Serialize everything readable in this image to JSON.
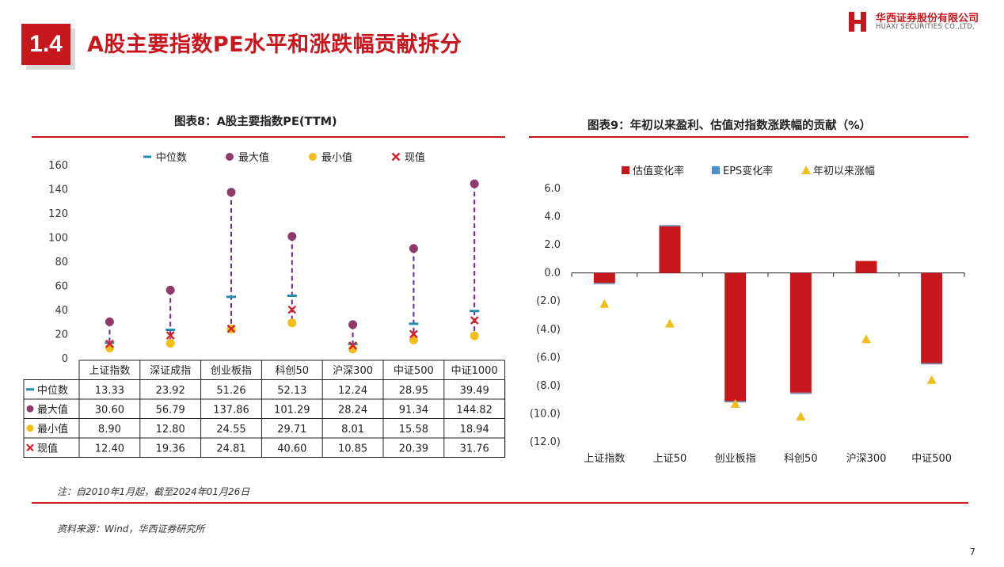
{
  "header": {
    "section_number": "1.4",
    "title": "A股主要指数PE水平和涨跌幅贡献拆分",
    "logo_cn": "华西证券股份有限公司",
    "logo_en": "HUAXI SECURITIES CO.,LTD."
  },
  "figure8": {
    "title": "图表8：A股主要指数PE(TTM)"
  },
  "figure9": {
    "title": "图表9：年初以来盈利、估值对指数涨跌幅的贡献（%）"
  },
  "footer": {
    "note": "注：自2010年1月起，截至2024年01月26日",
    "source": "资料来源：Wind，华西证券研究所",
    "page_number": "7"
  },
  "colors": {
    "brand_red": "#c8161d",
    "median": "#1f8fb0",
    "max": "#8e3a6b",
    "min": "#f2bf1a",
    "current": "#d6202c",
    "dashed": "#6a2b8f",
    "pe_bar": "#c8161d",
    "eps_bar": "#4a90c8",
    "ytd": "#f2bf1a"
  },
  "chart_data": [
    {
      "type": "scatter",
      "title": "图表8：A股主要指数PE(TTM)",
      "categories": [
        "上证指数",
        "深证成指",
        "创业板指",
        "科创50",
        "沪深300",
        "中证500",
        "中证1000"
      ],
      "series": [
        {
          "name": "中位数",
          "values": [
            13.33,
            23.92,
            51.26,
            52.13,
            12.24,
            28.95,
            39.49
          ]
        },
        {
          "name": "最大值",
          "values": [
            30.6,
            56.79,
            137.86,
            101.29,
            28.24,
            91.34,
            144.82
          ]
        },
        {
          "name": "最小值",
          "values": [
            8.9,
            12.8,
            24.55,
            29.71,
            8.01,
            15.58,
            18.94
          ]
        },
        {
          "name": "现值",
          "values": [
            12.4,
            19.36,
            24.81,
            40.6,
            10.85,
            20.39,
            31.76
          ]
        }
      ],
      "table_values": [
        [
          "13.33",
          "23.92",
          "51.26",
          "52.13",
          "12.24",
          "28.95",
          "39.49"
        ],
        [
          "30.60",
          "56.79",
          "137.86",
          "101.29",
          "28.24",
          "91.34",
          "144.82"
        ],
        [
          "8.90",
          "12.80",
          "24.55",
          "29.71",
          "8.01",
          "15.58",
          "18.94"
        ],
        [
          "12.40",
          "19.36",
          "24.81",
          "40.60",
          "10.85",
          "20.39",
          "31.76"
        ]
      ],
      "yticks": [
        "160",
        "140",
        "120",
        "100",
        "80",
        "60",
        "40",
        "20",
        "0"
      ],
      "ylim": [
        0,
        160
      ],
      "legend_position": "top"
    },
    {
      "type": "bar",
      "title": "图表9：年初以来盈利、估值对指数涨跌幅的贡献（%）",
      "categories": [
        "上证指数",
        "上证50",
        "创业板指",
        "科创50",
        "沪深300",
        "中证500"
      ],
      "series": [
        {
          "name": "估值变化率",
          "values": [
            -0.7,
            3.3,
            -9.1,
            -8.5,
            0.85,
            -6.4
          ]
        },
        {
          "name": "EPS变化率",
          "values": [
            -0.1,
            0.1,
            -0.1,
            -0.1,
            0.0,
            -0.1
          ]
        },
        {
          "name": "年初以来涨幅",
          "values": [
            -2.2,
            -3.6,
            -9.3,
            -10.2,
            -4.7,
            -7.6
          ]
        }
      ],
      "yticks": [
        "6.0",
        "4.0",
        "2.0",
        "0.0",
        "(2.0)",
        "(4.0)",
        "(6.0)",
        "(8.0)",
        "(10.0)",
        "(12.0)"
      ],
      "ylim": [
        -12,
        6
      ],
      "legend_position": "top"
    }
  ]
}
